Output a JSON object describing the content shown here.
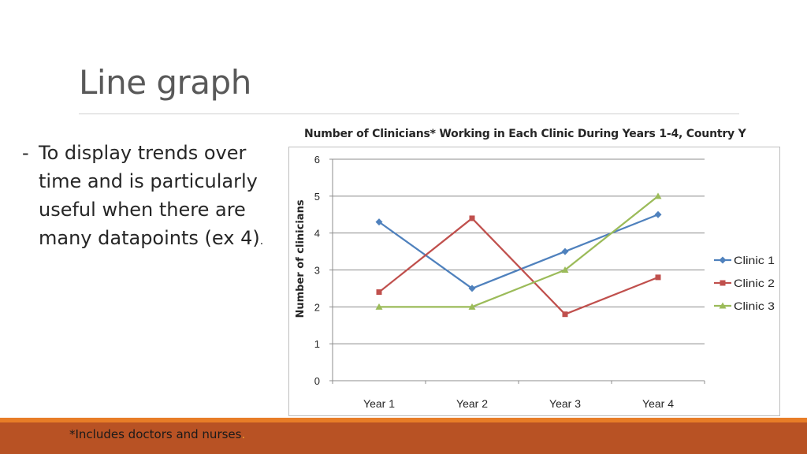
{
  "slide": {
    "title": "Line graph",
    "bullet_marker": "-",
    "bullet_text": "To display trends over time and is particularly useful when there are many datapoints (ex 4)",
    "bullet_end": ".",
    "footnote": "*Includes doctors and nurses",
    "footnote_end": "."
  },
  "colors": {
    "footer_band": "#b85224",
    "footer_thin": "#e87d27",
    "clinic1": "#4f81bd",
    "clinic2": "#c0504d",
    "clinic3": "#9bbb59"
  },
  "chart_data": {
    "type": "line",
    "title": "Number of Clinicians* Working in Each Clinic During Years 1-4, Country Y",
    "xlabel": "",
    "ylabel": "Number of clinicians",
    "categories": [
      "Year 1",
      "Year 2",
      "Year 3",
      "Year 4"
    ],
    "ylim": [
      0,
      6
    ],
    "yticks": [
      "0",
      "1",
      "2",
      "3",
      "4",
      "5",
      "6"
    ],
    "grid": true,
    "legend_position": "right",
    "series": [
      {
        "name": "Clinic 1",
        "values": [
          4.3,
          2.5,
          3.5,
          4.5
        ],
        "color": "#4f81bd",
        "marker": "diamond"
      },
      {
        "name": "Clinic 2",
        "values": [
          2.4,
          4.4,
          1.8,
          2.8
        ],
        "color": "#c0504d",
        "marker": "square"
      },
      {
        "name": "Clinic 3",
        "values": [
          2.0,
          2.0,
          3.0,
          5.0
        ],
        "color": "#9bbb59",
        "marker": "triangle"
      }
    ]
  }
}
